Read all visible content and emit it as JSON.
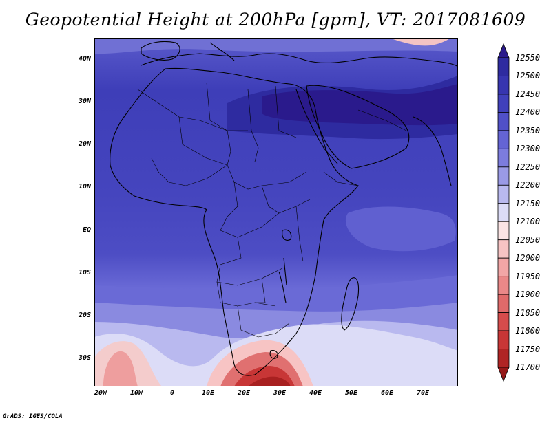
{
  "title": "Geopotential Height at 200hPa [gpm], VT: 2017081609",
  "credit": "GrADS: IGES/COLA",
  "lat_labels": [
    "40N",
    "30N",
    "20N",
    "10N",
    "EQ",
    "10S",
    "20S",
    "30S"
  ],
  "lon_labels": [
    "20W",
    "10W",
    "0",
    "10E",
    "20E",
    "30E",
    "40E",
    "50E",
    "60E",
    "70E"
  ],
  "colorbar": {
    "levels": [
      "12550",
      "12500",
      "12450",
      "12400",
      "12350",
      "12300",
      "12250",
      "12200",
      "12150",
      "12100",
      "12050",
      "12000",
      "11950",
      "11900",
      "11850",
      "11800",
      "11750",
      "11700"
    ],
    "colors": [
      "#2a1a8c",
      "#2e2ba0",
      "#3735b0",
      "#4040bb",
      "#5050c8",
      "#6464d4",
      "#7c7cde",
      "#9a9ae6",
      "#b9b9ef",
      "#dcdcf7",
      "#fbe4e4",
      "#f7c4c4",
      "#f2a6a6",
      "#ea8888",
      "#e06a6a",
      "#d64c4c",
      "#c83636",
      "#b02424",
      "#951818"
    ]
  }
}
